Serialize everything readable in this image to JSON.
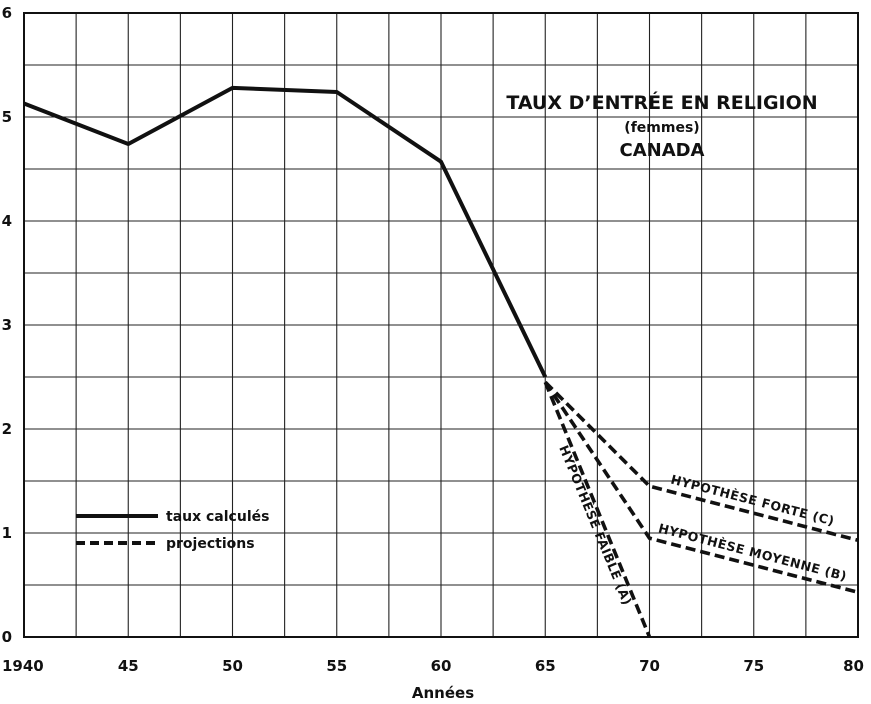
{
  "chart_data": {
    "type": "line",
    "title": "TAUX D’ENTRÉE EN RELIGION",
    "subtitle": "(femmes)",
    "region": "CANADA",
    "xlabel": "Années",
    "ylabel": "",
    "xlim": [
      1940,
      1980
    ],
    "ylim": [
      0,
      6
    ],
    "x_ticks": [
      {
        "value": 1940,
        "label": "1940"
      },
      {
        "value": 1945,
        "label": "45"
      },
      {
        "value": 1950,
        "label": "50"
      },
      {
        "value": 1955,
        "label": "55"
      },
      {
        "value": 1960,
        "label": "60"
      },
      {
        "value": 1965,
        "label": "65"
      },
      {
        "value": 1970,
        "label": "70"
      },
      {
        "value": 1975,
        "label": "75"
      },
      {
        "value": 1980,
        "label": "80"
      }
    ],
    "y_ticks": [
      {
        "value": 0,
        "label": "0"
      },
      {
        "value": 1,
        "label": "1"
      },
      {
        "value": 2,
        "label": "2"
      },
      {
        "value": 3,
        "label": "3"
      },
      {
        "value": 4,
        "label": "4"
      },
      {
        "value": 5,
        "label": "5"
      },
      {
        "value": 6,
        "label": "6"
      }
    ],
    "grid": true,
    "grid_minor": {
      "x_step": 2.5,
      "y_step": 0.5
    },
    "legend": {
      "placement": "lower-left",
      "entries": [
        {
          "label": "taux calculés",
          "style": "solid"
        },
        {
          "label": "projections",
          "style": "dashed"
        }
      ]
    },
    "series": [
      {
        "name": "taux calculés",
        "style": "solid",
        "x": [
          1940,
          1945,
          1950,
          1955,
          1960,
          1965
        ],
        "y": [
          5.13,
          4.74,
          5.28,
          5.24,
          4.57,
          2.5
        ]
      },
      {
        "name": "projections",
        "label": "HYPOTHÈSE FORTE (C)",
        "style": "dashed",
        "x": [
          1965,
          1970,
          1980
        ],
        "y": [
          2.45,
          1.45,
          0.93
        ]
      },
      {
        "name": "projections",
        "label": "HYPOTHÈSE MOYENNE (B)",
        "style": "dashed",
        "x": [
          1965,
          1970,
          1980
        ],
        "y": [
          2.45,
          0.95,
          0.43
        ]
      },
      {
        "name": "projections",
        "label": "HYPOTHÈSE FAIBLE (A)",
        "style": "dashed",
        "x": [
          1965,
          1970
        ],
        "y": [
          2.45,
          0.0
        ]
      }
    ],
    "colors": {
      "ink": "#111111",
      "background": "#ffffff"
    }
  }
}
